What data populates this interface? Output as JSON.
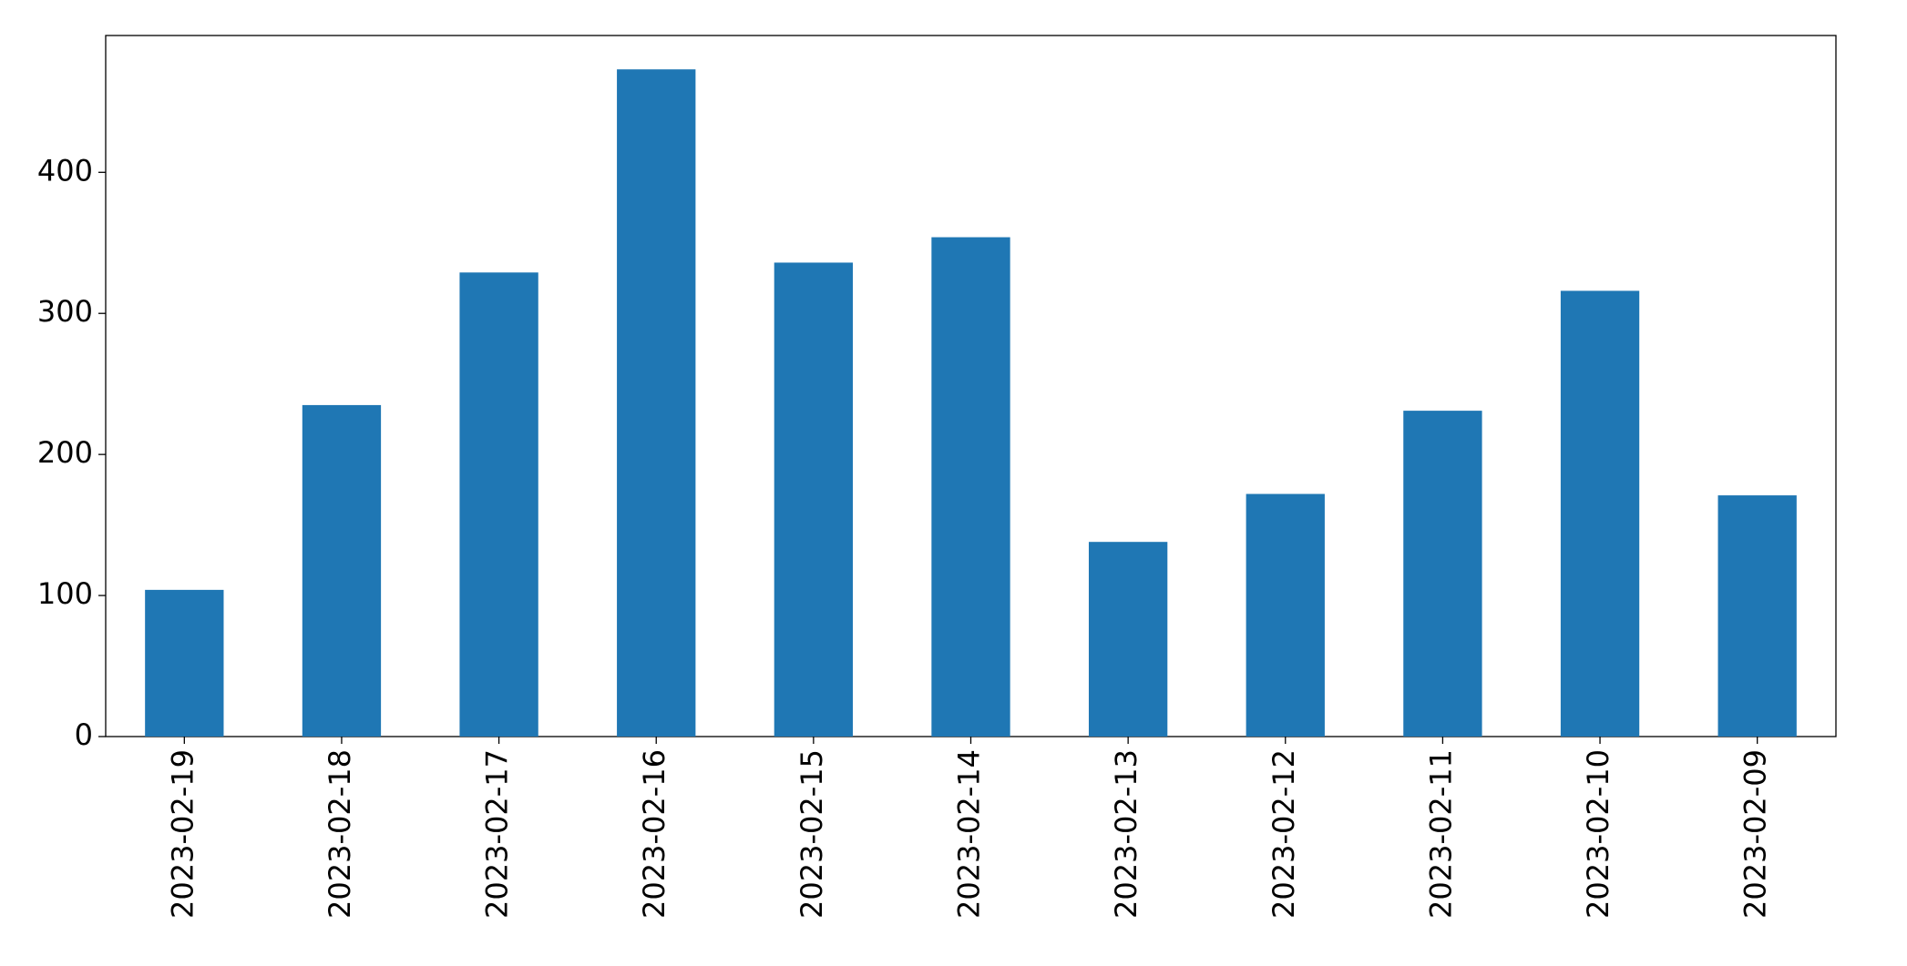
{
  "chart_data": {
    "type": "bar",
    "categories": [
      "2023-02-19",
      "2023-02-18",
      "2023-02-17",
      "2023-02-16",
      "2023-02-15",
      "2023-02-14",
      "2023-02-13",
      "2023-02-12",
      "2023-02-11",
      "2023-02-10",
      "2023-02-09"
    ],
    "values": [
      104,
      235,
      329,
      473,
      336,
      354,
      138,
      172,
      231,
      316,
      171
    ],
    "color": "#1f77b4",
    "ylim": [
      0,
      497
    ],
    "yticks": [
      0,
      100,
      200,
      300,
      400
    ],
    "grid": false
  }
}
